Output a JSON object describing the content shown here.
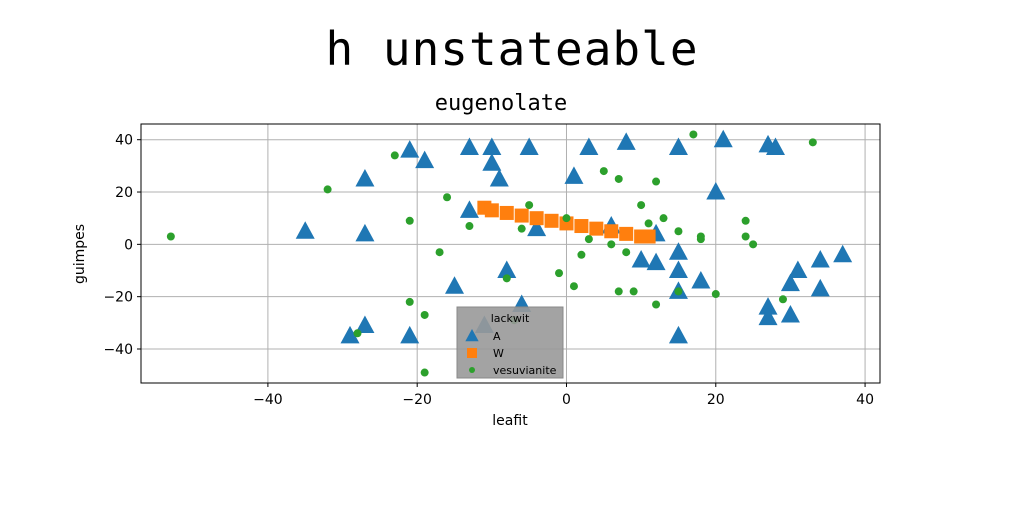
{
  "chart_data": {
    "type": "scatter",
    "suptitle": "h unstateable",
    "title": "eugenolate",
    "xlabel": "leafit",
    "ylabel": "guimpes",
    "xlim": [
      -57,
      42
    ],
    "ylim": [
      -53,
      46
    ],
    "xticks": [
      -40,
      -20,
      0,
      20,
      40
    ],
    "yticks": [
      -40,
      -20,
      0,
      20,
      40
    ],
    "grid": true,
    "legend": {
      "title": "lackwit",
      "placement": "lower-center"
    },
    "series": [
      {
        "name": "A",
        "marker": "triangle",
        "color": "#1f77b4",
        "points": [
          [
            -35,
            5
          ],
          [
            -27,
            4
          ],
          [
            -27,
            25
          ],
          [
            -21,
            36
          ],
          [
            -19,
            32
          ],
          [
            -13,
            37
          ],
          [
            -13,
            13
          ],
          [
            -10,
            37
          ],
          [
            -10,
            31
          ],
          [
            -9,
            25
          ],
          [
            -8,
            -10
          ],
          [
            -6,
            -23
          ],
          [
            -5,
            37
          ],
          [
            -4,
            6
          ],
          [
            1,
            26
          ],
          [
            3,
            37
          ],
          [
            6,
            7
          ],
          [
            8,
            39
          ],
          [
            10,
            -6
          ],
          [
            12,
            4
          ],
          [
            12,
            -7
          ],
          [
            15,
            37
          ],
          [
            15,
            -3
          ],
          [
            15,
            -10
          ],
          [
            15,
            -18
          ],
          [
            15,
            -35
          ],
          [
            18,
            -14
          ],
          [
            20,
            20
          ],
          [
            21,
            40
          ],
          [
            27,
            38
          ],
          [
            28,
            37
          ],
          [
            27,
            -24
          ],
          [
            27,
            -28
          ],
          [
            30,
            -27
          ],
          [
            30,
            -15
          ],
          [
            31,
            -10
          ],
          [
            34,
            -6
          ],
          [
            34,
            -17
          ],
          [
            37,
            -4
          ],
          [
            -15,
            -16
          ],
          [
            -21,
            -35
          ],
          [
            -27,
            -31
          ],
          [
            -29,
            -35
          ],
          [
            -11,
            -31
          ]
        ]
      },
      {
        "name": "W",
        "marker": "square",
        "color": "#ff7f0e",
        "points": [
          [
            -11,
            14
          ],
          [
            -10,
            13
          ],
          [
            -8,
            12
          ],
          [
            -6,
            11
          ],
          [
            -4,
            10
          ],
          [
            -2,
            9
          ],
          [
            0,
            8
          ],
          [
            2,
            7
          ],
          [
            4,
            6
          ],
          [
            6,
            5
          ],
          [
            8,
            4
          ],
          [
            10,
            3
          ],
          [
            11,
            3
          ]
        ]
      },
      {
        "name": "vesuvianite",
        "marker": "circle",
        "color": "#2ca02c",
        "points": [
          [
            -53,
            3
          ],
          [
            -32,
            21
          ],
          [
            -23,
            34
          ],
          [
            -21,
            9
          ],
          [
            -21,
            -22
          ],
          [
            -19,
            -27
          ],
          [
            -19,
            -49
          ],
          [
            -17,
            -3
          ],
          [
            -16,
            18
          ],
          [
            -13,
            7
          ],
          [
            -8,
            -13
          ],
          [
            -7,
            -29
          ],
          [
            -6,
            6
          ],
          [
            -5,
            15
          ],
          [
            -1,
            -11
          ],
          [
            0,
            10
          ],
          [
            1,
            -16
          ],
          [
            2,
            -4
          ],
          [
            3,
            2
          ],
          [
            5,
            28
          ],
          [
            6,
            0
          ],
          [
            7,
            25
          ],
          [
            7,
            -18
          ],
          [
            8,
            -3
          ],
          [
            9,
            -18
          ],
          [
            10,
            15
          ],
          [
            11,
            8
          ],
          [
            12,
            24
          ],
          [
            12,
            -23
          ],
          [
            13,
            10
          ],
          [
            15,
            5
          ],
          [
            15,
            -18
          ],
          [
            18,
            2
          ],
          [
            18,
            3
          ],
          [
            20,
            -19
          ],
          [
            24,
            9
          ],
          [
            24,
            3
          ],
          [
            25,
            0
          ],
          [
            29,
            -21
          ],
          [
            17,
            42
          ],
          [
            33,
            39
          ],
          [
            -28,
            -34
          ]
        ]
      }
    ]
  }
}
